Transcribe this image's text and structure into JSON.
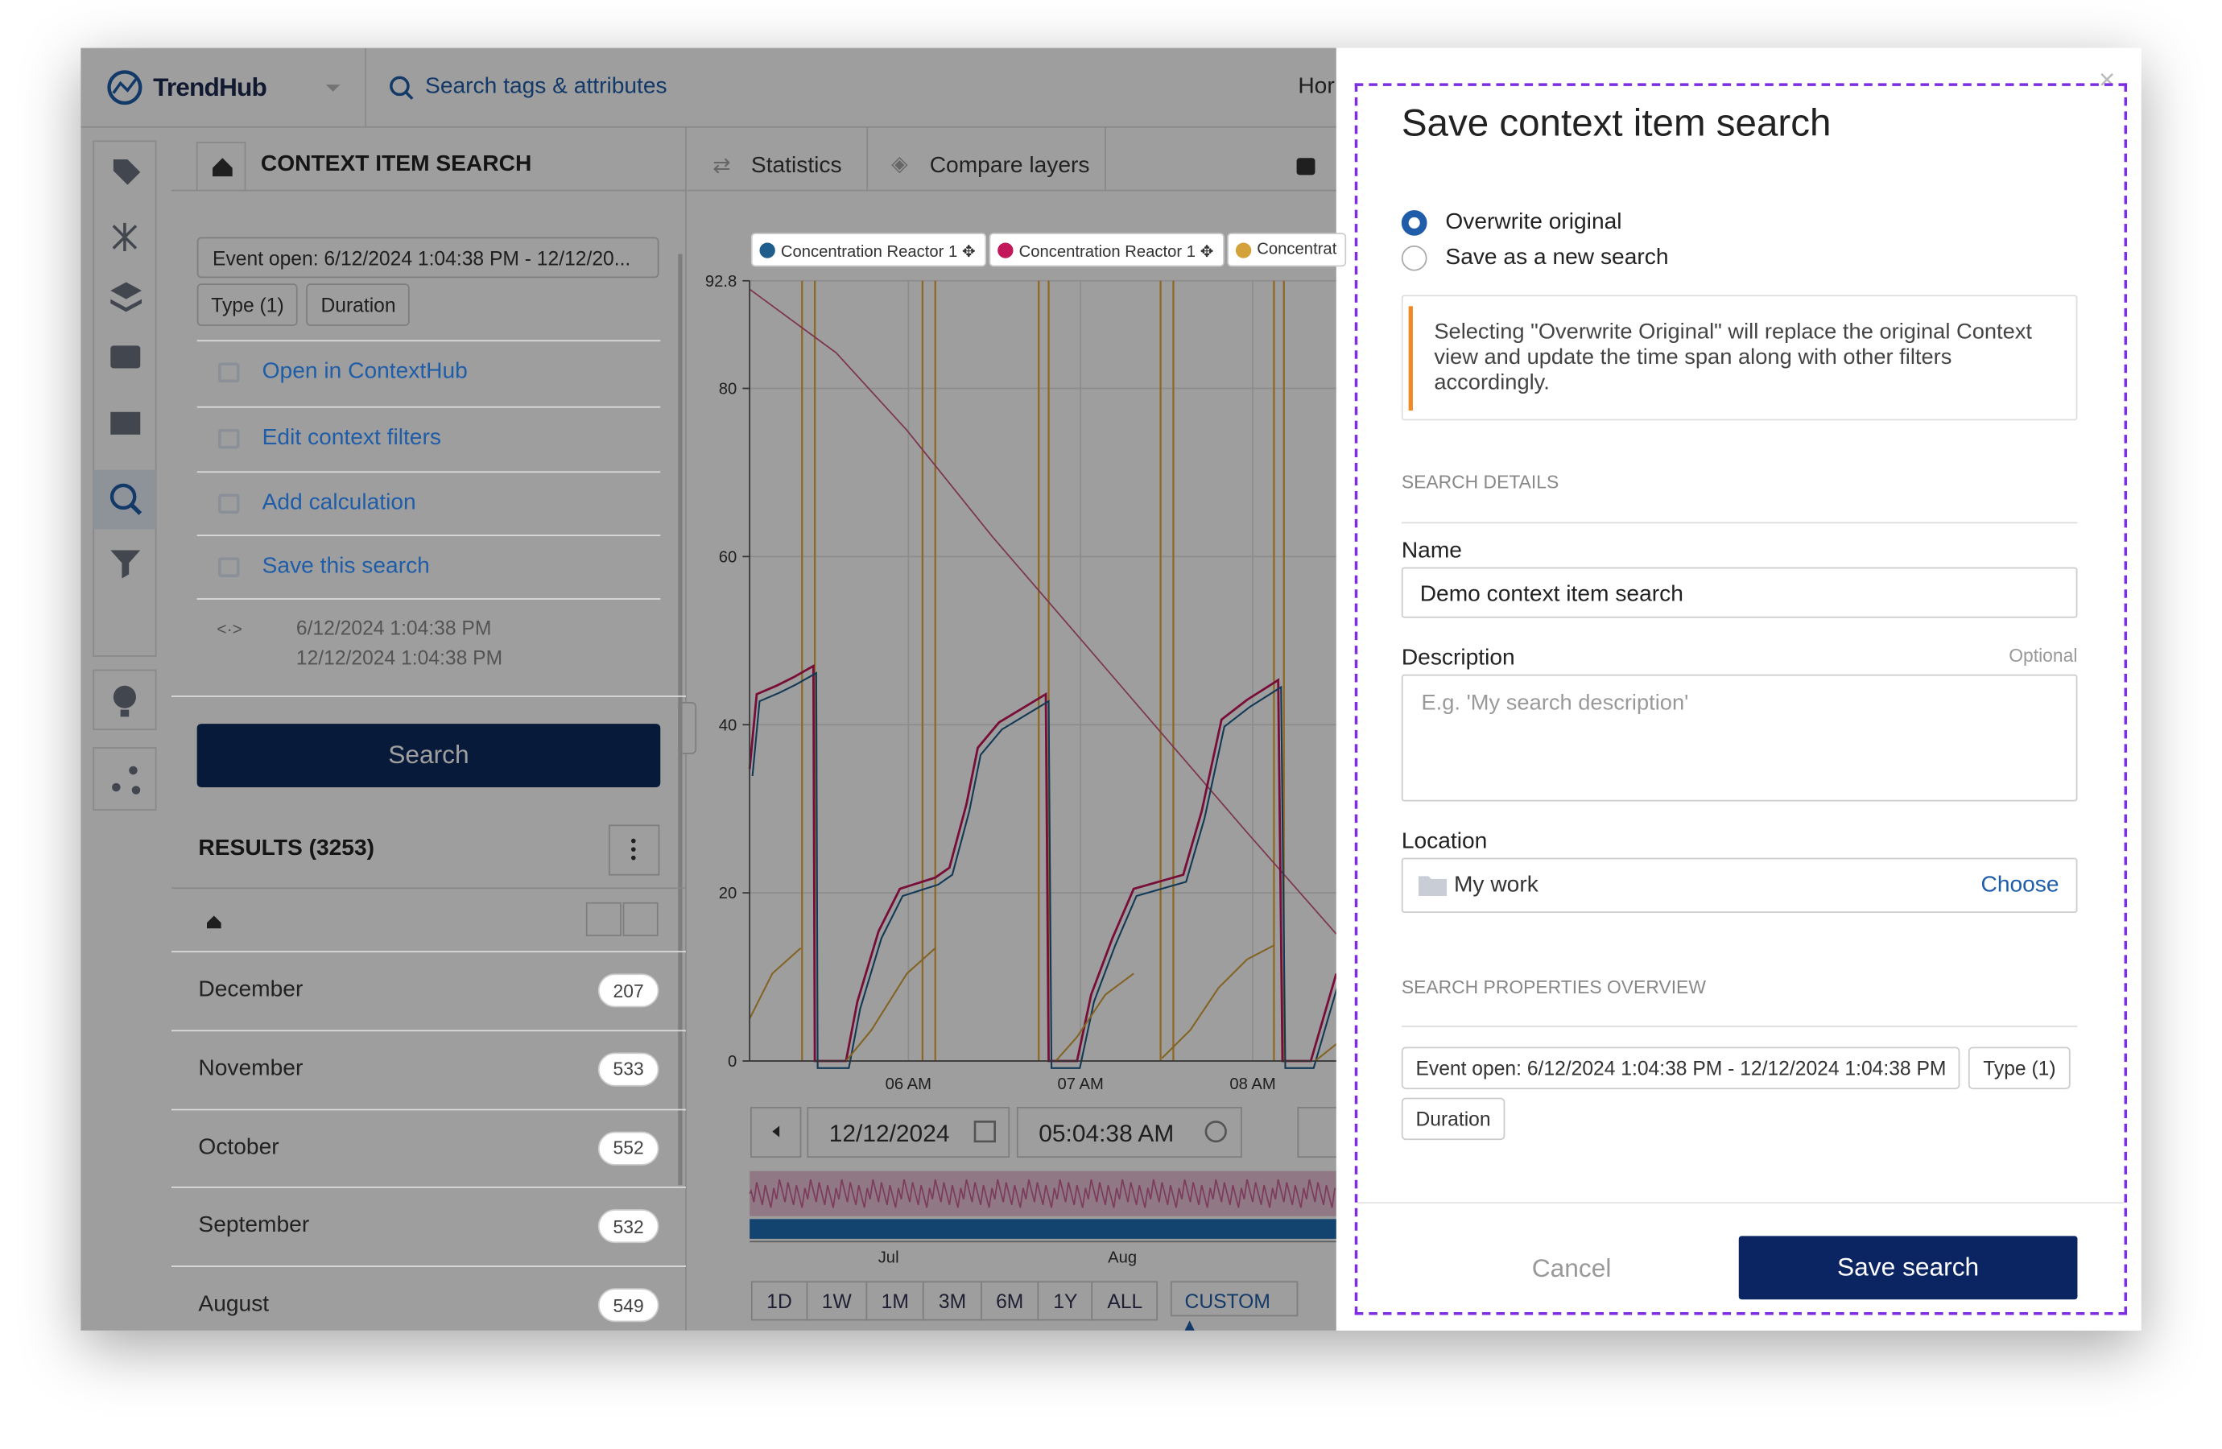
{
  "app": {
    "logo": "TrendHub",
    "search_placeholder": "Search tags & attributes",
    "nav_clipped": "Hor"
  },
  "panel": {
    "title": "CONTEXT ITEM SEARCH",
    "filter_summary": "Event open: 6/12/2024 1:04:38 PM - 12/12/20...",
    "filter_chips": [
      "Type (1)",
      "Duration"
    ],
    "actions": [
      "Open in ContextHub",
      "Edit context filters",
      "Add calculation",
      "Save this search"
    ],
    "range_start": "6/12/2024 1:04:38 PM",
    "range_end": "12/12/2024 1:04:38 PM",
    "search_button": "Search",
    "results_title": "RESULTS (3253)",
    "results": [
      {
        "label": "December",
        "count": 207
      },
      {
        "label": "November",
        "count": 533
      },
      {
        "label": "October",
        "count": 552
      },
      {
        "label": "September",
        "count": 532
      },
      {
        "label": "August",
        "count": 549
      }
    ]
  },
  "chart": {
    "tabs": [
      "Statistics",
      "Compare layers"
    ],
    "legend": [
      "Concentration Reactor 1",
      "Concentration Reactor 1",
      "Concentrat"
    ],
    "ylim": [
      0,
      92.8
    ],
    "yticks": [
      92.8,
      80,
      60,
      40,
      20,
      0
    ],
    "xticks": [
      "06 AM",
      "07 AM",
      "08 AM"
    ],
    "date": "12/12/2024",
    "time": "05:04:38 AM",
    "navigator_labels": [
      "Jul",
      "Aug"
    ],
    "range_buttons": [
      "1D",
      "1W",
      "1M",
      "3M",
      "6M",
      "1Y",
      "ALL"
    ],
    "custom": "CUSTOM"
  },
  "dialog": {
    "title": "Save context item search",
    "options": [
      "Overwrite original",
      "Save as a new search"
    ],
    "info": "Selecting \"Overwrite Original\" will replace the original Context view and update the time span along with other filters accordingly.",
    "details_heading": "SEARCH DETAILS",
    "name_label": "Name",
    "name_value": "Demo context item search",
    "description_label": "Description",
    "optional": "Optional",
    "description_placeholder": "E.g. 'My search description'",
    "location_label": "Location",
    "location_value": "My work",
    "choose": "Choose",
    "overview_heading": "SEARCH PROPERTIES OVERVIEW",
    "overview_chips": [
      "Event open: 6/12/2024 1:04:38 PM - 12/12/2024 1:04:38 PM",
      "Type (1)",
      "Duration"
    ],
    "cancel": "Cancel",
    "save": "Save search"
  }
}
